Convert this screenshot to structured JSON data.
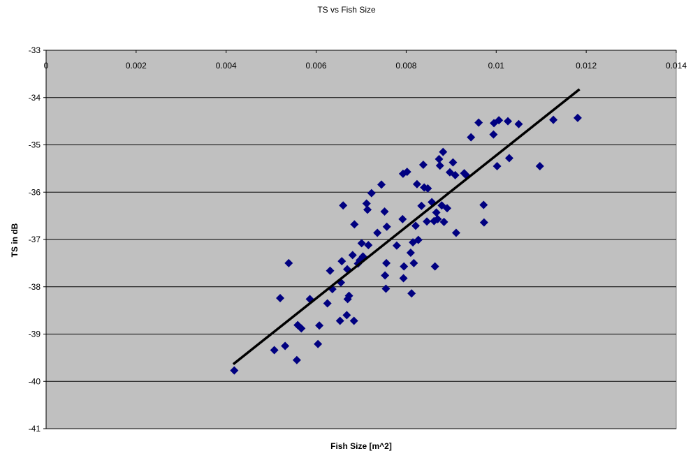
{
  "chart_data": {
    "type": "scatter",
    "title": "TS vs Fish Size",
    "xlabel": "Fish Size [m^2]",
    "ylabel": "TS in dB",
    "xlim": [
      0,
      0.014
    ],
    "ylim": [
      -41,
      -33
    ],
    "x_ticks": [
      "0",
      "0.002",
      "0.004",
      "0.006",
      "0.008",
      "0.01",
      "0.012",
      "0.014"
    ],
    "y_ticks": [
      "-33",
      "-34",
      "-35",
      "-36",
      "-37",
      "-38",
      "-39",
      "-40",
      "-41"
    ],
    "x_tick_values": [
      0,
      0.002,
      0.004,
      0.006,
      0.008,
      0.01,
      0.012,
      0.014
    ],
    "y_tick_values": [
      -33,
      -34,
      -35,
      -36,
      -37,
      -38,
      -39,
      -40,
      -41
    ],
    "grid": "horizontal",
    "legend": "none",
    "colors": {
      "plot_background": "#c0c0c0",
      "marker": "#000080",
      "trendline": "#000000",
      "gridline": "#000000"
    },
    "series": [
      {
        "marker": "diamond",
        "points": [
          [
            0.00418,
            -39.77
          ],
          [
            0.00507,
            -39.34
          ],
          [
            0.00531,
            -39.25
          ],
          [
            0.00557,
            -39.55
          ],
          [
            0.0052,
            -38.24
          ],
          [
            0.00539,
            -37.5
          ],
          [
            0.00559,
            -38.81
          ],
          [
            0.00567,
            -38.88
          ],
          [
            0.00586,
            -38.26
          ],
          [
            0.00604,
            -39.21
          ],
          [
            0.00607,
            -38.82
          ],
          [
            0.00625,
            -38.35
          ],
          [
            0.00631,
            -37.66
          ],
          [
            0.00636,
            -38.05
          ],
          [
            0.00653,
            -38.72
          ],
          [
            0.00655,
            -37.91
          ],
          [
            0.00657,
            -37.46
          ],
          [
            0.0066,
            -36.28
          ],
          [
            0.00668,
            -38.6
          ],
          [
            0.00669,
            -37.63
          ],
          [
            0.0067,
            -38.26
          ],
          [
            0.00673,
            -38.19
          ],
          [
            0.00681,
            -37.33
          ],
          [
            0.00684,
            -38.72
          ],
          [
            0.00685,
            -36.68
          ],
          [
            0.00693,
            -37.51
          ],
          [
            0.00697,
            -37.44
          ],
          [
            0.00701,
            -37.08
          ],
          [
            0.00704,
            -37.36
          ],
          [
            0.00712,
            -36.24
          ],
          [
            0.00714,
            -36.37
          ],
          [
            0.00716,
            -37.12
          ],
          [
            0.00723,
            -36.02
          ],
          [
            0.00736,
            -36.86
          ],
          [
            0.00745,
            -35.84
          ],
          [
            0.00752,
            -36.41
          ],
          [
            0.00753,
            -37.76
          ],
          [
            0.00755,
            -38.04
          ],
          [
            0.00756,
            -37.5
          ],
          [
            0.00757,
            -36.73
          ],
          [
            0.00779,
            -37.13
          ],
          [
            0.00792,
            -36.57
          ],
          [
            0.00793,
            -35.61
          ],
          [
            0.00794,
            -37.82
          ],
          [
            0.00795,
            -37.57
          ],
          [
            0.00802,
            -35.57
          ],
          [
            0.0081,
            -37.28
          ],
          [
            0.00812,
            -38.14
          ],
          [
            0.00815,
            -37.06
          ],
          [
            0.00817,
            -37.5
          ],
          [
            0.00821,
            -36.71
          ],
          [
            0.00824,
            -35.83
          ],
          [
            0.00827,
            -37.01
          ],
          [
            0.00834,
            -36.29
          ],
          [
            0.00838,
            -35.42
          ],
          [
            0.0084,
            -35.9
          ],
          [
            0.00846,
            -36.62
          ],
          [
            0.00848,
            -35.92
          ],
          [
            0.00857,
            -36.21
          ],
          [
            0.00862,
            -36.61
          ],
          [
            0.00864,
            -37.57
          ],
          [
            0.00867,
            -36.43
          ],
          [
            0.0087,
            -36.57
          ],
          [
            0.00873,
            -35.3
          ],
          [
            0.00875,
            -35.44
          ],
          [
            0.00879,
            -36.28
          ],
          [
            0.00882,
            -35.15
          ],
          [
            0.00884,
            -36.63
          ],
          [
            0.00891,
            -36.34
          ],
          [
            0.00897,
            -35.58
          ],
          [
            0.00904,
            -35.37
          ],
          [
            0.00909,
            -35.64
          ],
          [
            0.00911,
            -36.86
          ],
          [
            0.00929,
            -35.6
          ],
          [
            0.00933,
            -35.64
          ],
          [
            0.00944,
            -34.84
          ],
          [
            0.00961,
            -34.53
          ],
          [
            0.00972,
            -36.27
          ],
          [
            0.00973,
            -36.64
          ],
          [
            0.00994,
            -34.78
          ],
          [
            0.00995,
            -34.54
          ],
          [
            0.01002,
            -35.45
          ],
          [
            0.01006,
            -34.48
          ],
          [
            0.01026,
            -34.5
          ],
          [
            0.01029,
            -35.28
          ],
          [
            0.0105,
            -34.56
          ],
          [
            0.01097,
            -35.45
          ],
          [
            0.01127,
            -34.47
          ],
          [
            0.01181,
            -34.43
          ]
        ]
      }
    ],
    "trendline": {
      "x": [
        0.00418,
        0.01183
      ],
      "y": [
        -39.62,
        -33.84
      ]
    }
  }
}
